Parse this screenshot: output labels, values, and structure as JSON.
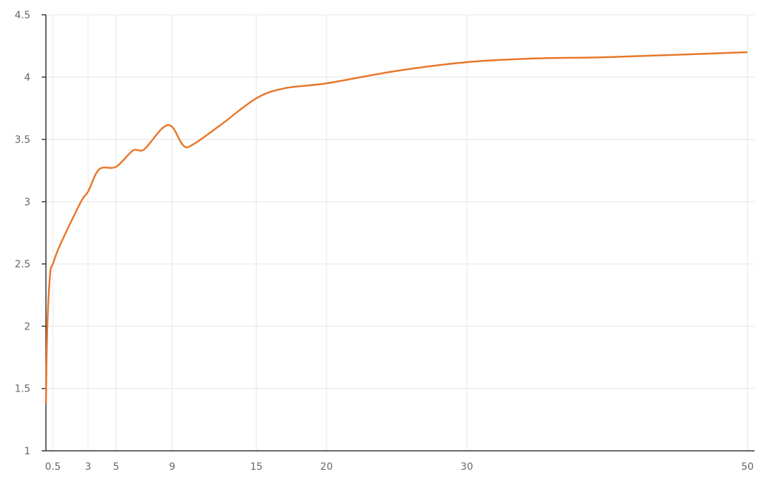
{
  "chart_data": {
    "type": "line",
    "title": "",
    "xlabel": "",
    "ylabel": "",
    "xlim": [
      0,
      50
    ],
    "ylim": [
      1,
      4.5
    ],
    "x_ticks": [
      0.5,
      3,
      5,
      9,
      15,
      20,
      30,
      50
    ],
    "y_ticks": [
      1,
      1.5,
      2,
      2.5,
      3,
      3.5,
      4,
      4.5
    ],
    "grid": true,
    "legend": "none",
    "series": [
      {
        "color": "#e8772a",
        "x": [
          0,
          0.1,
          0.3,
          0.5,
          1,
          2.5,
          3,
          3.8,
          5,
          6.2,
          7,
          8.3,
          9,
          9.8,
          10.5,
          12.5,
          15,
          17,
          20,
          25,
          30,
          35,
          40,
          50
        ],
        "y": [
          1.38,
          2.0,
          2.42,
          2.5,
          2.65,
          3.0,
          3.08,
          3.26,
          3.28,
          3.41,
          3.42,
          3.59,
          3.6,
          3.45,
          3.46,
          3.62,
          3.83,
          3.91,
          3.95,
          4.05,
          4.12,
          4.15,
          4.16,
          4.2
        ]
      }
    ]
  }
}
